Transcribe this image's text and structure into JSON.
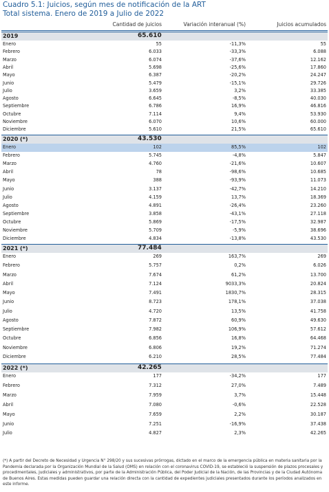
{
  "header": {
    "title": "Cuadro 5.1: Juicios, según mes de notificación de la ART",
    "subtitle": "Total sistema. Enero de 2019 a Julio de 2022"
  },
  "table": {
    "columns": [
      "Cantidad de juicios",
      "Variación interanual (%)",
      "Juicios acumulados"
    ],
    "groups": [
      {
        "year": "2019",
        "total": "65.610",
        "rows": [
          [
            "Enero",
            "55",
            "-11,3%",
            "55"
          ],
          [
            "Febrero",
            "6.033",
            "-33,3%",
            "6.088"
          ],
          [
            "Marzo",
            "6.074",
            "-37,6%",
            "12.162"
          ],
          [
            "Abril",
            "5.698",
            "-25,6%",
            "17.860"
          ],
          [
            "Mayo",
            "6.387",
            "-20,2%",
            "24.247"
          ],
          [
            "Junio",
            "5.479",
            "-15,1%",
            "29.726"
          ],
          [
            "Julio",
            "3.659",
            "3,2%",
            "33.385"
          ],
          [
            "Agosto",
            "6.645",
            "-8,5%",
            "40.030"
          ],
          [
            "Septiembre",
            "6.786",
            "16,9%",
            "46.816"
          ],
          [
            "Octubre",
            "7.114",
            "9,4%",
            "53.930"
          ],
          [
            "Noviembre",
            "6.070",
            "10,6%",
            "60.000"
          ],
          [
            "Diciembre",
            "5.610",
            "21,5%",
            "65.610"
          ]
        ]
      },
      {
        "year": "2020 (*)",
        "total": "43.530",
        "rows": [
          [
            "Enero",
            "102",
            "85,5%",
            "102"
          ],
          [
            "Febrero",
            "5.745",
            "-4,8%",
            "5.847"
          ],
          [
            "Marzo",
            "4.760",
            "-21,6%",
            "10.607"
          ],
          [
            "Abril",
            "78",
            "-98,6%",
            "10.685"
          ],
          [
            "Mayo",
            "388",
            "-93,9%",
            "11.073"
          ],
          [
            "Junio",
            "3.137",
            "-42,7%",
            "14.210"
          ],
          [
            "Julio",
            "4.159",
            "13,7%",
            "18.369"
          ],
          [
            "Agosto",
            "4.891",
            "-26,4%",
            "23.260"
          ],
          [
            "Septiembre",
            "3.858",
            "-43,1%",
            "27.118"
          ],
          [
            "Octubre",
            "5.869",
            "-17,5%",
            "32.987"
          ],
          [
            "Noviembre",
            "5.709",
            "-5,9%",
            "38.696"
          ],
          [
            "Diciembre",
            "4.834",
            "-13,8%",
            "43.530"
          ]
        ]
      },
      {
        "year": "2021 (*)",
        "total": "77.484",
        "rows": [
          [
            "Enero",
            "269",
            "163,7%",
            "269"
          ],
          [
            "Febrero",
            "5.757",
            "0,2%",
            "6.026"
          ],
          [
            "Marzo",
            "7.674",
            "61,2%",
            "13.700"
          ],
          [
            "Abril",
            "7.124",
            "9033,3%",
            "20.824"
          ],
          [
            "Mayo",
            "7.491",
            "1830,7%",
            "28.315"
          ],
          [
            "Junio",
            "8.723",
            "178,1%",
            "37.038"
          ],
          [
            "Julio",
            "4.720",
            "13,5%",
            "41.758"
          ],
          [
            "Agosto",
            "7.872",
            "60,9%",
            "49.630"
          ],
          [
            "Septiembre",
            "7.982",
            "106,9%",
            "57.612"
          ],
          [
            "Octubre",
            "6.856",
            "16,8%",
            "64.468"
          ],
          [
            "Noviembre",
            "6.806",
            "19,2%",
            "71.274"
          ],
          [
            "Diciembre",
            "6.210",
            "28,5%",
            "77.484"
          ]
        ]
      },
      {
        "year": "2022 (*)",
        "total": "42.265",
        "rows": [
          [
            "Enero",
            "177",
            "-34,2%",
            "177"
          ],
          [
            "Febrero",
            "7.312",
            "27,0%",
            "7.489"
          ],
          [
            "Marzo",
            "7.959",
            "3,7%",
            "15.448"
          ],
          [
            "Abril",
            "7.080",
            "-0,6%",
            "22.528"
          ],
          [
            "Mayo",
            "7.659",
            "2,2%",
            "30.187"
          ],
          [
            "Junio",
            "7.251",
            "-16,9%",
            "37.438"
          ],
          [
            "Julio",
            "4.827",
            "2,3%",
            "42.265"
          ]
        ]
      }
    ]
  },
  "footnote": "(*) A partir del Decreto de Necesidad y Urgencia N° 298/20 y sus sucesivas prórrogas, dictado en el marco de la emergencia pública en materia sanitaria por la Pandemia declarada por la Organización Mundial de la Salud (OMS) en relación con el coronavirus COVID-19, se estableció la suspensión de plazos procesales y procedimentales, judiciales y administrativos, por parte de la Administración Pública, del Poder Judicial de la Nación, de las Provincias y de la Ciudad Autónoma de Buenos Aires. Estas medidas pueden guardar una relación directa con la cantidad de expedientes judiciales presentados durante los períodos analizados en este informe."
}
